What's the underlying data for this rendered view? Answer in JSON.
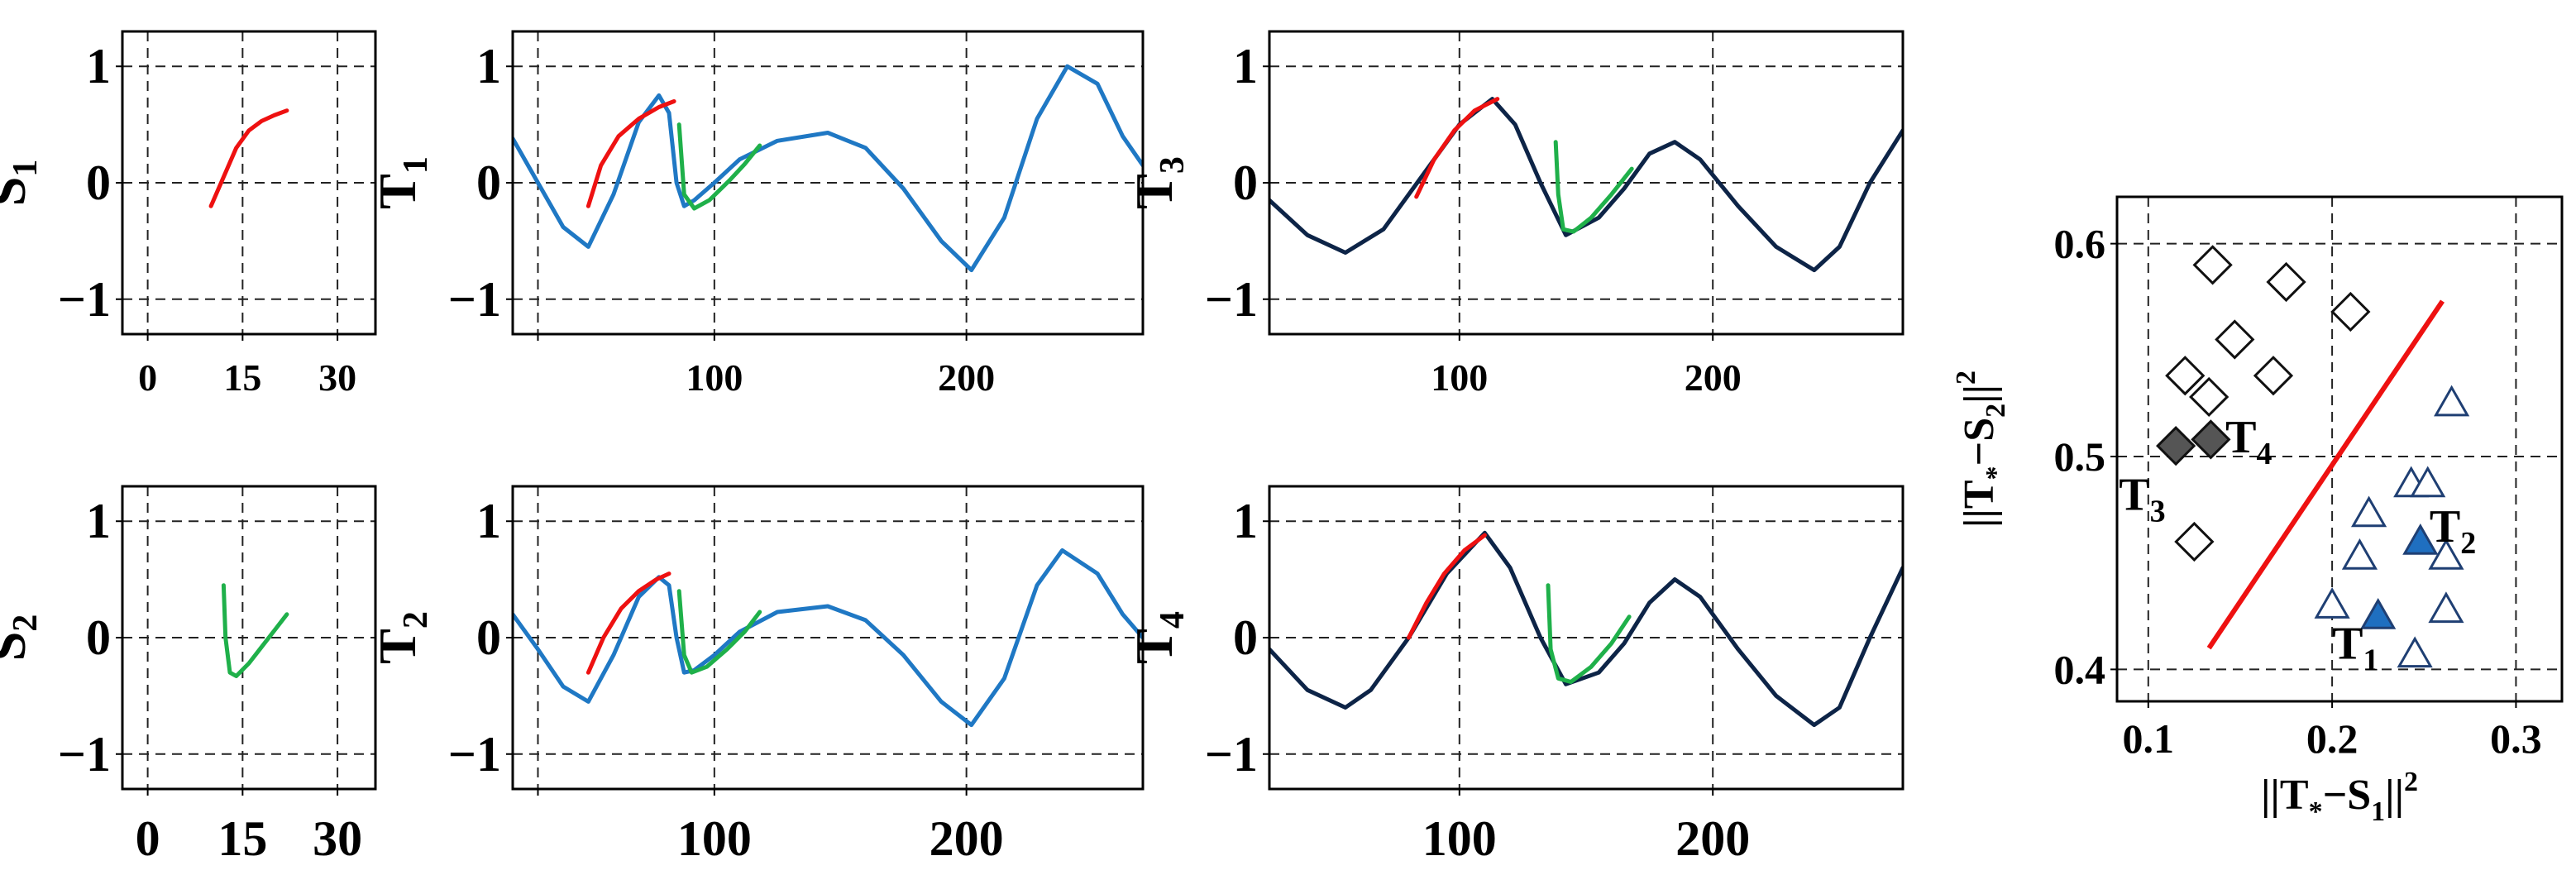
{
  "colors": {
    "red": "#ee1111",
    "green": "#1fb04a",
    "blue": "#1f78c4",
    "navy": "#0d2447",
    "grid": "#222222",
    "diamond_fill_dark": "#555555",
    "triangle_edge": "#1f3f73",
    "triangle_fill": "#1f6fc0",
    "separator": "#ee1111"
  },
  "chart_data": [
    {
      "id": "S1",
      "type": "line",
      "ylabel": "S",
      "ylabel_sub": "1",
      "xlim": [
        -4,
        36
      ],
      "ylim": [
        -1.3,
        1.3
      ],
      "xticks": [
        0,
        15,
        30
      ],
      "xtick_labels": [
        "0",
        "15",
        "30"
      ],
      "yticks": [
        -1,
        0,
        1
      ],
      "ytick_labels": [
        "−1",
        "0",
        "1"
      ],
      "series": [
        {
          "color": "red",
          "x": [
            10,
            12,
            14,
            16,
            18,
            20,
            22
          ],
          "y": [
            -0.2,
            0.05,
            0.3,
            0.45,
            0.53,
            0.58,
            0.62
          ]
        }
      ]
    },
    {
      "id": "T1",
      "type": "line",
      "ylabel": "T",
      "ylabel_sub": "1",
      "xlim": [
        20,
        270
      ],
      "ylim": [
        -1.3,
        1.3
      ],
      "xticks": [
        30,
        100,
        200
      ],
      "xtick_labels": [
        "",
        "100",
        "200"
      ],
      "yticks": [
        -1,
        0,
        1
      ],
      "ytick_labels": [
        "−1",
        "0",
        "1"
      ],
      "series": [
        {
          "color": "blue",
          "x": [
            20,
            30,
            40,
            50,
            60,
            70,
            78,
            82,
            85,
            88,
            92,
            100,
            110,
            125,
            145,
            160,
            175,
            190,
            202,
            215,
            228,
            240,
            252,
            262,
            270
          ],
          "y": [
            0.38,
            0.0,
            -0.38,
            -0.55,
            -0.1,
            0.52,
            0.75,
            0.6,
            0.0,
            -0.2,
            -0.15,
            0.0,
            0.2,
            0.36,
            0.43,
            0.3,
            -0.05,
            -0.5,
            -0.75,
            -0.3,
            0.55,
            1.0,
            0.85,
            0.4,
            0.15
          ]
        },
        {
          "color": "red",
          "x": [
            50,
            55,
            62,
            70,
            78,
            84
          ],
          "y": [
            -0.2,
            0.15,
            0.4,
            0.55,
            0.65,
            0.7
          ]
        },
        {
          "color": "green",
          "x": [
            86,
            88,
            92,
            98,
            106,
            112,
            118
          ],
          "y": [
            0.5,
            -0.1,
            -0.22,
            -0.15,
            0.02,
            0.16,
            0.32
          ]
        }
      ]
    },
    {
      "id": "T3",
      "type": "line",
      "ylabel": "T",
      "ylabel_sub": "3",
      "xlim": [
        25,
        275
      ],
      "ylim": [
        -1.3,
        1.3
      ],
      "xticks": [
        100,
        200
      ],
      "xtick_labels": [
        "100",
        "200"
      ],
      "yticks": [
        -1,
        0,
        1
      ],
      "ytick_labels": [
        "−1",
        "0",
        "1"
      ],
      "series": [
        {
          "color": "navy",
          "x": [
            25,
            40,
            55,
            70,
            85,
            100,
            113,
            122,
            132,
            142,
            155,
            165,
            175,
            185,
            195,
            210,
            225,
            240,
            250,
            262,
            275
          ],
          "y": [
            -0.15,
            -0.45,
            -0.6,
            -0.4,
            0.05,
            0.5,
            0.72,
            0.5,
            0.0,
            -0.45,
            -0.3,
            -0.05,
            0.25,
            0.35,
            0.2,
            -0.2,
            -0.55,
            -0.75,
            -0.55,
            0.0,
            0.45
          ]
        },
        {
          "color": "red",
          "x": [
            83,
            90,
            98,
            106,
            115
          ],
          "y": [
            -0.12,
            0.2,
            0.45,
            0.62,
            0.72
          ]
        },
        {
          "color": "green",
          "x": [
            138,
            139,
            141,
            145,
            152,
            160,
            168
          ],
          "y": [
            0.35,
            -0.1,
            -0.4,
            -0.42,
            -0.3,
            -0.1,
            0.12
          ]
        }
      ]
    },
    {
      "id": "S2",
      "type": "line",
      "ylabel": "S",
      "ylabel_sub": "2",
      "xlim": [
        -4,
        36
      ],
      "ylim": [
        -1.3,
        1.3
      ],
      "xticks": [
        0,
        15,
        30
      ],
      "xtick_labels": [
        "0",
        "15",
        "30"
      ],
      "yticks": [
        -1,
        0,
        1
      ],
      "ytick_labels": [
        "−1",
        "0",
        "1"
      ],
      "series": [
        {
          "color": "green",
          "x": [
            12,
            12.3,
            13,
            14,
            16,
            18,
            20,
            22
          ],
          "y": [
            0.45,
            0.0,
            -0.3,
            -0.33,
            -0.22,
            -0.08,
            0.06,
            0.2
          ]
        }
      ]
    },
    {
      "id": "T2",
      "type": "line",
      "ylabel": "T",
      "ylabel_sub": "2",
      "xlim": [
        20,
        270
      ],
      "ylim": [
        -1.3,
        1.3
      ],
      "xticks": [
        30,
        100,
        200
      ],
      "xtick_labels": [
        "",
        "100",
        "200"
      ],
      "yticks": [
        -1,
        0,
        1
      ],
      "ytick_labels": [
        "−1",
        "0",
        "1"
      ],
      "series": [
        {
          "color": "blue",
          "x": [
            20,
            30,
            40,
            50,
            60,
            70,
            78,
            82,
            85,
            88,
            92,
            100,
            110,
            125,
            145,
            160,
            175,
            190,
            202,
            215,
            228,
            238,
            252,
            262,
            270
          ],
          "y": [
            0.2,
            -0.1,
            -0.42,
            -0.55,
            -0.15,
            0.35,
            0.52,
            0.45,
            0.0,
            -0.3,
            -0.28,
            -0.15,
            0.05,
            0.22,
            0.27,
            0.15,
            -0.15,
            -0.55,
            -0.75,
            -0.35,
            0.45,
            0.75,
            0.55,
            0.2,
            0.0
          ]
        },
        {
          "color": "red",
          "x": [
            50,
            56,
            63,
            70,
            77,
            82
          ],
          "y": [
            -0.3,
            0.0,
            0.25,
            0.4,
            0.5,
            0.55
          ]
        },
        {
          "color": "green",
          "x": [
            86,
            88,
            91,
            97,
            105,
            112,
            118
          ],
          "y": [
            0.4,
            -0.15,
            -0.3,
            -0.25,
            -0.1,
            0.05,
            0.22
          ]
        }
      ]
    },
    {
      "id": "T4",
      "type": "line",
      "ylabel": "T",
      "ylabel_sub": "4",
      "xlim": [
        25,
        275
      ],
      "ylim": [
        -1.3,
        1.3
      ],
      "xticks": [
        100,
        200
      ],
      "xtick_labels": [
        "100",
        "200"
      ],
      "yticks": [
        -1,
        0,
        1
      ],
      "ytick_labels": [
        "−1",
        "0",
        "1"
      ],
      "series": [
        {
          "color": "navy",
          "x": [
            25,
            40,
            55,
            65,
            80,
            95,
            110,
            120,
            132,
            142,
            155,
            165,
            175,
            185,
            195,
            210,
            225,
            240,
            250,
            262,
            275
          ],
          "y": [
            -0.1,
            -0.45,
            -0.6,
            -0.45,
            0.0,
            0.55,
            0.9,
            0.6,
            0.0,
            -0.4,
            -0.3,
            -0.05,
            0.3,
            0.5,
            0.35,
            -0.1,
            -0.5,
            -0.75,
            -0.6,
            0.0,
            0.6
          ]
        },
        {
          "color": "red",
          "x": [
            80,
            87,
            94,
            102,
            110
          ],
          "y": [
            0.0,
            0.3,
            0.55,
            0.75,
            0.88
          ]
        },
        {
          "color": "green",
          "x": [
            135,
            136,
            139,
            144,
            152,
            160,
            167
          ],
          "y": [
            0.45,
            -0.1,
            -0.35,
            -0.38,
            -0.25,
            -0.05,
            0.18
          ]
        }
      ]
    },
    {
      "id": "scatter",
      "type": "scatter",
      "xlabel": "||T*−S1||²",
      "xlabel_parts": [
        "||T",
        "*",
        "−S",
        "1",
        "||",
        "2"
      ],
      "ylabel_parts": [
        "||T",
        "*",
        "−S",
        "2",
        "||",
        "2"
      ],
      "xlim": [
        0.083,
        0.325
      ],
      "ylim": [
        0.385,
        0.622
      ],
      "xticks": [
        0.1,
        0.2,
        0.3
      ],
      "xtick_labels": [
        "0.1",
        "0.2",
        "0.3"
      ],
      "yticks": [
        0.4,
        0.5,
        0.6
      ],
      "ytick_labels": [
        "0.4",
        "0.5",
        "0.6"
      ],
      "series": [
        {
          "marker": "diamond",
          "filled": false,
          "x": [
            0.135,
            0.175,
            0.21,
            0.147,
            0.168,
            0.12,
            0.133,
            0.125
          ],
          "y": [
            0.59,
            0.582,
            0.568,
            0.555,
            0.538,
            0.538,
            0.528,
            0.46
          ]
        },
        {
          "marker": "diamond",
          "filled": true,
          "x": [
            0.115,
            0.134
          ],
          "y": [
            0.505,
            0.508
          ]
        },
        {
          "marker": "triangle",
          "filled": false,
          "x": [
            0.265,
            0.243,
            0.252,
            0.22,
            0.215,
            0.262,
            0.262,
            0.2,
            0.245
          ],
          "y": [
            0.525,
            0.487,
            0.487,
            0.473,
            0.453,
            0.453,
            0.428,
            0.43,
            0.407
          ]
        },
        {
          "marker": "triangle",
          "filled": true,
          "x": [
            0.248,
            0.225
          ],
          "y": [
            0.46,
            0.425
          ]
        },
        {
          "marker": "line",
          "x": [
            0.133,
            0.26
          ],
          "y": [
            0.41,
            0.573
          ]
        }
      ],
      "annotations": [
        {
          "label": "T",
          "sub": "4",
          "x": 0.142,
          "y": 0.502
        },
        {
          "label": "T",
          "sub": "3",
          "x": 0.084,
          "y": 0.475
        },
        {
          "label": "T",
          "sub": "2",
          "x": 0.253,
          "y": 0.46
        },
        {
          "label": "T",
          "sub": "1",
          "x": 0.2,
          "y": 0.405
        }
      ]
    }
  ]
}
